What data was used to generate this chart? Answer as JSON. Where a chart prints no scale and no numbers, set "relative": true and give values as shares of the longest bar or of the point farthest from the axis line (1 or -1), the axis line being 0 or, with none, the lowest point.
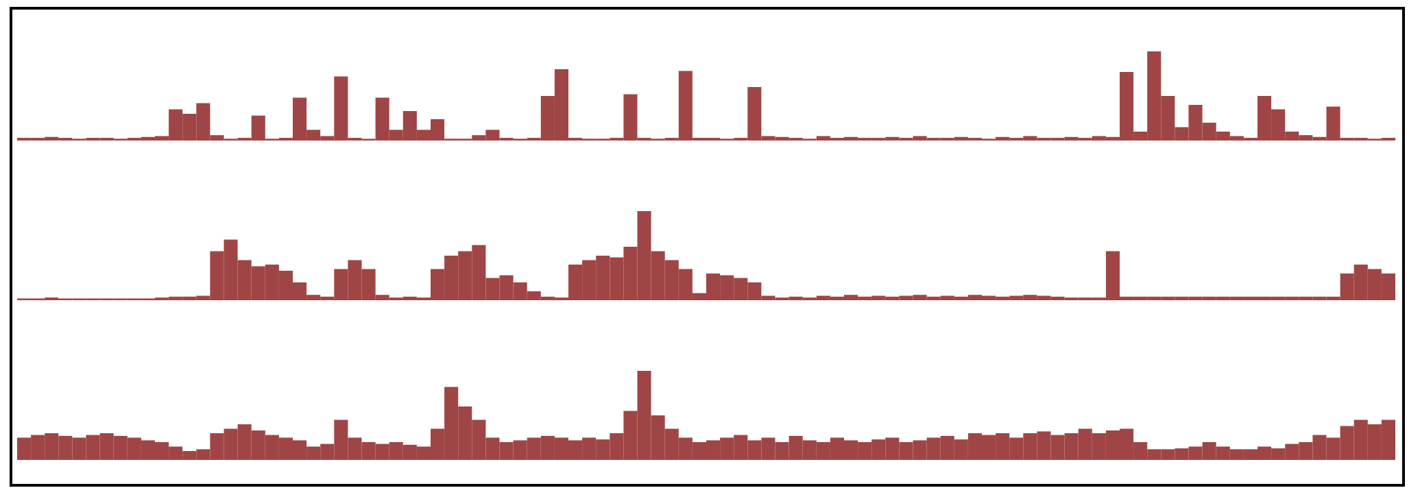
{
  "chart_data": [
    {
      "type": "bar",
      "relative": true,
      "color": "#a04545",
      "categories": [
        null,
        null,
        null,
        null,
        null,
        null,
        null,
        null,
        null,
        null,
        null,
        null,
        null,
        null,
        null,
        null,
        null,
        null,
        null,
        null,
        null,
        null,
        null,
        null,
        null,
        null,
        null,
        null,
        null,
        null,
        null,
        null,
        null,
        null,
        null,
        null,
        null,
        null,
        null,
        null,
        null,
        null,
        null,
        null,
        null,
        null,
        null,
        null,
        null,
        null,
        null,
        null,
        null,
        null,
        null,
        null,
        null,
        null,
        null,
        null,
        null,
        null,
        null,
        null,
        null,
        null,
        null,
        null,
        null,
        null,
        null,
        null,
        null,
        null,
        null,
        null,
        null,
        null,
        null,
        null,
        null,
        null,
        null,
        null,
        null,
        null,
        null,
        null,
        null,
        null,
        null,
        null,
        null,
        null,
        null,
        null,
        null,
        null,
        null,
        null
      ],
      "values": [
        0.03,
        0.03,
        0.04,
        0.03,
        0.02,
        0.03,
        0.03,
        0.02,
        0.03,
        0.04,
        0.05,
        0.35,
        0.3,
        0.42,
        0.06,
        0.02,
        0.03,
        0.28,
        0.02,
        0.03,
        0.48,
        0.12,
        0.05,
        0.72,
        0.03,
        0.02,
        0.48,
        0.12,
        0.33,
        0.12,
        0.24,
        0.02,
        0.02,
        0.06,
        0.12,
        0.03,
        0.02,
        0.03,
        0.5,
        0.8,
        0.03,
        0.02,
        0.02,
        0.03,
        0.52,
        0.03,
        0.02,
        0.03,
        0.78,
        0.03,
        0.03,
        0.02,
        0.03,
        0.6,
        0.05,
        0.04,
        0.03,
        0.02,
        0.05,
        0.03,
        0.04,
        0.03,
        0.03,
        0.04,
        0.03,
        0.05,
        0.03,
        0.03,
        0.04,
        0.03,
        0.02,
        0.04,
        0.03,
        0.05,
        0.03,
        0.03,
        0.04,
        0.03,
        0.05,
        0.04,
        0.77,
        0.1,
        1,
        0.5,
        0.15,
        0.4,
        0.2,
        0.1,
        0.05,
        0.03,
        0.5,
        0.35,
        0.1,
        0.06,
        0.04,
        0.38,
        0.03,
        0.03,
        0.02,
        0.03
      ]
    },
    {
      "type": "bar",
      "relative": true,
      "color": "#a04545",
      "categories": [
        null,
        null,
        null,
        null,
        null,
        null,
        null,
        null,
        null,
        null,
        null,
        null,
        null,
        null,
        null,
        null,
        null,
        null,
        null,
        null,
        null,
        null,
        null,
        null,
        null,
        null,
        null,
        null,
        null,
        null,
        null,
        null,
        null,
        null,
        null,
        null,
        null,
        null,
        null,
        null,
        null,
        null,
        null,
        null,
        null,
        null,
        null,
        null,
        null,
        null,
        null,
        null,
        null,
        null,
        null,
        null,
        null,
        null,
        null,
        null,
        null,
        null,
        null,
        null,
        null,
        null,
        null,
        null,
        null,
        null,
        null,
        null,
        null,
        null,
        null,
        null,
        null,
        null,
        null,
        null,
        null,
        null,
        null,
        null,
        null,
        null,
        null,
        null,
        null,
        null,
        null,
        null,
        null,
        null,
        null,
        null,
        null,
        null,
        null,
        null
      ],
      "values": [
        0.02,
        0.02,
        0.03,
        0.02,
        0.02,
        0.02,
        0.02,
        0.02,
        0.02,
        0.02,
        0.03,
        0.04,
        0.04,
        0.05,
        0.55,
        0.68,
        0.45,
        0.38,
        0.4,
        0.33,
        0.2,
        0.06,
        0.04,
        0.35,
        0.45,
        0.35,
        0.06,
        0.03,
        0.04,
        0.03,
        0.35,
        0.5,
        0.55,
        0.62,
        0.25,
        0.28,
        0.2,
        0.1,
        0.04,
        0.03,
        0.4,
        0.45,
        0.5,
        0.48,
        0.6,
        1,
        0.55,
        0.45,
        0.35,
        0.08,
        0.3,
        0.28,
        0.25,
        0.2,
        0.05,
        0.03,
        0.04,
        0.03,
        0.05,
        0.04,
        0.06,
        0.04,
        0.05,
        0.04,
        0.05,
        0.06,
        0.04,
        0.05,
        0.04,
        0.06,
        0.05,
        0.04,
        0.05,
        0.06,
        0.05,
        0.04,
        0.03,
        0.03,
        0.03,
        0.55,
        0.04,
        0.04,
        0.04,
        0.04,
        0.04,
        0.04,
        0.04,
        0.04,
        0.04,
        0.04,
        0.04,
        0.04,
        0.04,
        0.04,
        0.04,
        0.04,
        0.3,
        0.4,
        0.35,
        0.3
      ]
    },
    {
      "type": "bar",
      "relative": true,
      "color": "#a04545",
      "categories": [
        null,
        null,
        null,
        null,
        null,
        null,
        null,
        null,
        null,
        null,
        null,
        null,
        null,
        null,
        null,
        null,
        null,
        null,
        null,
        null,
        null,
        null,
        null,
        null,
        null,
        null,
        null,
        null,
        null,
        null,
        null,
        null,
        null,
        null,
        null,
        null,
        null,
        null,
        null,
        null,
        null,
        null,
        null,
        null,
        null,
        null,
        null,
        null,
        null,
        null,
        null,
        null,
        null,
        null,
        null,
        null,
        null,
        null,
        null,
        null,
        null,
        null,
        null,
        null,
        null,
        null,
        null,
        null,
        null,
        null,
        null,
        null,
        null,
        null,
        null,
        null,
        null,
        null,
        null,
        null,
        null,
        null,
        null,
        null,
        null,
        null,
        null,
        null,
        null,
        null,
        null,
        null,
        null,
        null,
        null,
        null,
        null,
        null,
        null,
        null
      ],
      "values": [
        0.25,
        0.28,
        0.3,
        0.27,
        0.25,
        0.28,
        0.3,
        0.27,
        0.25,
        0.22,
        0.2,
        0.15,
        0.1,
        0.12,
        0.3,
        0.35,
        0.4,
        0.33,
        0.28,
        0.25,
        0.22,
        0.15,
        0.18,
        0.45,
        0.25,
        0.2,
        0.18,
        0.2,
        0.17,
        0.15,
        0.35,
        0.82,
        0.6,
        0.45,
        0.25,
        0.2,
        0.22,
        0.25,
        0.27,
        0.25,
        0.22,
        0.25,
        0.23,
        0.3,
        0.55,
        1,
        0.5,
        0.35,
        0.25,
        0.2,
        0.22,
        0.25,
        0.28,
        0.22,
        0.25,
        0.2,
        0.27,
        0.22,
        0.2,
        0.25,
        0.22,
        0.2,
        0.23,
        0.25,
        0.2,
        0.22,
        0.25,
        0.27,
        0.23,
        0.3,
        0.28,
        0.3,
        0.25,
        0.3,
        0.32,
        0.28,
        0.3,
        0.35,
        0.3,
        0.33,
        0.35,
        0.2,
        0.12,
        0.12,
        0.13,
        0.15,
        0.2,
        0.15,
        0.12,
        0.12,
        0.15,
        0.13,
        0.18,
        0.2,
        0.28,
        0.25,
        0.38,
        0.45,
        0.4,
        0.45
      ]
    }
  ]
}
